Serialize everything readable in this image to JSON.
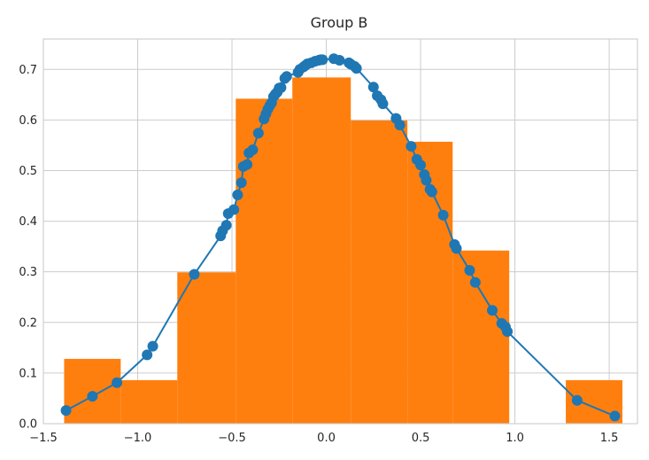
{
  "chart_data": {
    "type": "histogram+line",
    "title": "Group B",
    "xlabel": "",
    "ylabel": "",
    "xlim": [
      -1.5,
      1.65
    ],
    "ylim": [
      0,
      0.76
    ],
    "x_ticks": [
      -1.5,
      -1.0,
      -0.5,
      0.0,
      0.5,
      1.0,
      1.5
    ],
    "x_tick_labels": [
      "−1.5",
      "−1.0",
      "−0.5",
      "0.0",
      "0.5",
      "1.0",
      "1.5"
    ],
    "y_ticks": [
      0.0,
      0.1,
      0.2,
      0.3,
      0.4,
      0.5,
      0.6,
      0.7
    ],
    "y_tick_labels": [
      "0.0",
      "0.1",
      "0.2",
      "0.3",
      "0.4",
      "0.5",
      "0.6",
      "0.7"
    ],
    "grid": true,
    "colors": {
      "bars": "#ff7f0e",
      "line": "#1f77b4",
      "grid": "#cccccc",
      "text": "#262626"
    },
    "bars": [
      {
        "x0": -1.39,
        "x1": -1.09,
        "height": 0.128
      },
      {
        "x0": -1.09,
        "x1": -0.79,
        "height": 0.086
      },
      {
        "x0": -0.79,
        "x1": -0.48,
        "height": 0.299
      },
      {
        "x0": -0.48,
        "x1": -0.18,
        "height": 0.642
      },
      {
        "x0": -0.18,
        "x1": 0.13,
        "height": 0.684
      },
      {
        "x0": 0.13,
        "x1": 0.43,
        "height": 0.599
      },
      {
        "x0": 0.43,
        "x1": 0.67,
        "height": 0.557
      },
      {
        "x0": 0.67,
        "x1": 0.97,
        "height": 0.342
      },
      {
        "x0": 0.97,
        "x1": 1.27,
        "height": 0.0
      },
      {
        "x0": 1.27,
        "x1": 1.57,
        "height": 0.086
      }
    ],
    "series": [
      {
        "x": [
          -1.38,
          -1.24,
          -1.11,
          -0.95,
          -0.92,
          -0.7,
          -0.56,
          -0.55,
          -0.53,
          -0.52,
          -0.49,
          -0.47,
          -0.45,
          -0.44,
          -0.42,
          -0.41,
          -0.39,
          -0.36,
          -0.33,
          -0.32,
          -0.31,
          -0.3,
          -0.29,
          -0.28,
          -0.27,
          -0.26,
          -0.25,
          -0.24,
          -0.22,
          -0.21,
          -0.15,
          -0.14,
          -0.12,
          -0.11,
          -0.1,
          -0.08,
          -0.06,
          -0.04,
          -0.03,
          -0.02,
          0.04,
          0.07,
          0.12,
          0.13,
          0.15,
          0.16,
          0.25,
          0.27,
          0.29,
          0.3,
          0.37,
          0.39,
          0.45,
          0.48,
          0.5,
          0.52,
          0.53,
          0.55,
          0.56,
          0.62,
          0.68,
          0.69,
          0.76,
          0.79,
          0.88,
          0.93,
          0.95,
          0.96,
          1.33,
          1.53
        ],
        "y": [
          0.026,
          0.054,
          0.081,
          0.136,
          0.153,
          0.295,
          0.371,
          0.381,
          0.392,
          0.415,
          0.423,
          0.452,
          0.476,
          0.508,
          0.512,
          0.535,
          0.541,
          0.574,
          0.602,
          0.612,
          0.621,
          0.628,
          0.634,
          0.646,
          0.651,
          0.655,
          0.663,
          0.664,
          0.682,
          0.686,
          0.694,
          0.7,
          0.705,
          0.708,
          0.711,
          0.713,
          0.716,
          0.718,
          0.719,
          0.719,
          0.721,
          0.718,
          0.713,
          0.71,
          0.706,
          0.702,
          0.665,
          0.648,
          0.64,
          0.632,
          0.603,
          0.59,
          0.548,
          0.522,
          0.511,
          0.492,
          0.481,
          0.463,
          0.458,
          0.412,
          0.354,
          0.346,
          0.303,
          0.279,
          0.224,
          0.198,
          0.191,
          0.182,
          0.046,
          0.015
        ]
      }
    ]
  }
}
